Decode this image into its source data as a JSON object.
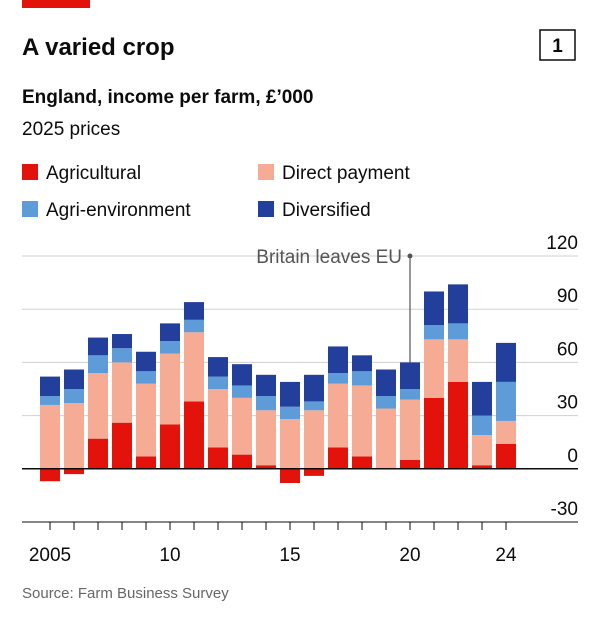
{
  "header": {
    "tag": "1"
  },
  "chart_data": {
    "type": "stacked-bar",
    "title": "A varied crop",
    "subtitle": "England, income per farm, £’000",
    "unit": "2025 prices",
    "annotation": "Britain leaves EU",
    "source": "Source: Farm Business Survey",
    "categories": [
      "2005",
      null,
      null,
      null,
      null,
      "10",
      null,
      null,
      null,
      null,
      "15",
      null,
      null,
      null,
      null,
      "20",
      null,
      null,
      null,
      "24"
    ],
    "series": [
      {
        "name": "Agricultural",
        "color": "#e3120b",
        "values": [
          -7,
          -3,
          17,
          26,
          7,
          25,
          38,
          12,
          8,
          2,
          -8,
          -4,
          12,
          7,
          0,
          5,
          40,
          49,
          2,
          14
        ]
      },
      {
        "name": "Direct payment",
        "color": "#f6ab94",
        "values": [
          36,
          37,
          37,
          34,
          41,
          40,
          39,
          33,
          32,
          31,
          28,
          33,
          36,
          40,
          34,
          34,
          33,
          24,
          17,
          13
        ]
      },
      {
        "name": "Agri-environment",
        "color": "#5e9cd9",
        "values": [
          5,
          8,
          10,
          8,
          7,
          7,
          7,
          7,
          7,
          8,
          7,
          5,
          6,
          8,
          7,
          6,
          8,
          9,
          11,
          22
        ]
      },
      {
        "name": "Diversified",
        "color": "#233f9c",
        "values": [
          11,
          11,
          10,
          8,
          11,
          10,
          10,
          11,
          12,
          12,
          14,
          15,
          15,
          9,
          15,
          15,
          19,
          22,
          19,
          22
        ]
      }
    ],
    "ylim": [
      -30,
      120
    ],
    "yticks": [
      -30,
      0,
      30,
      60,
      90,
      120
    ],
    "grid": true,
    "annotation_index": 15
  }
}
